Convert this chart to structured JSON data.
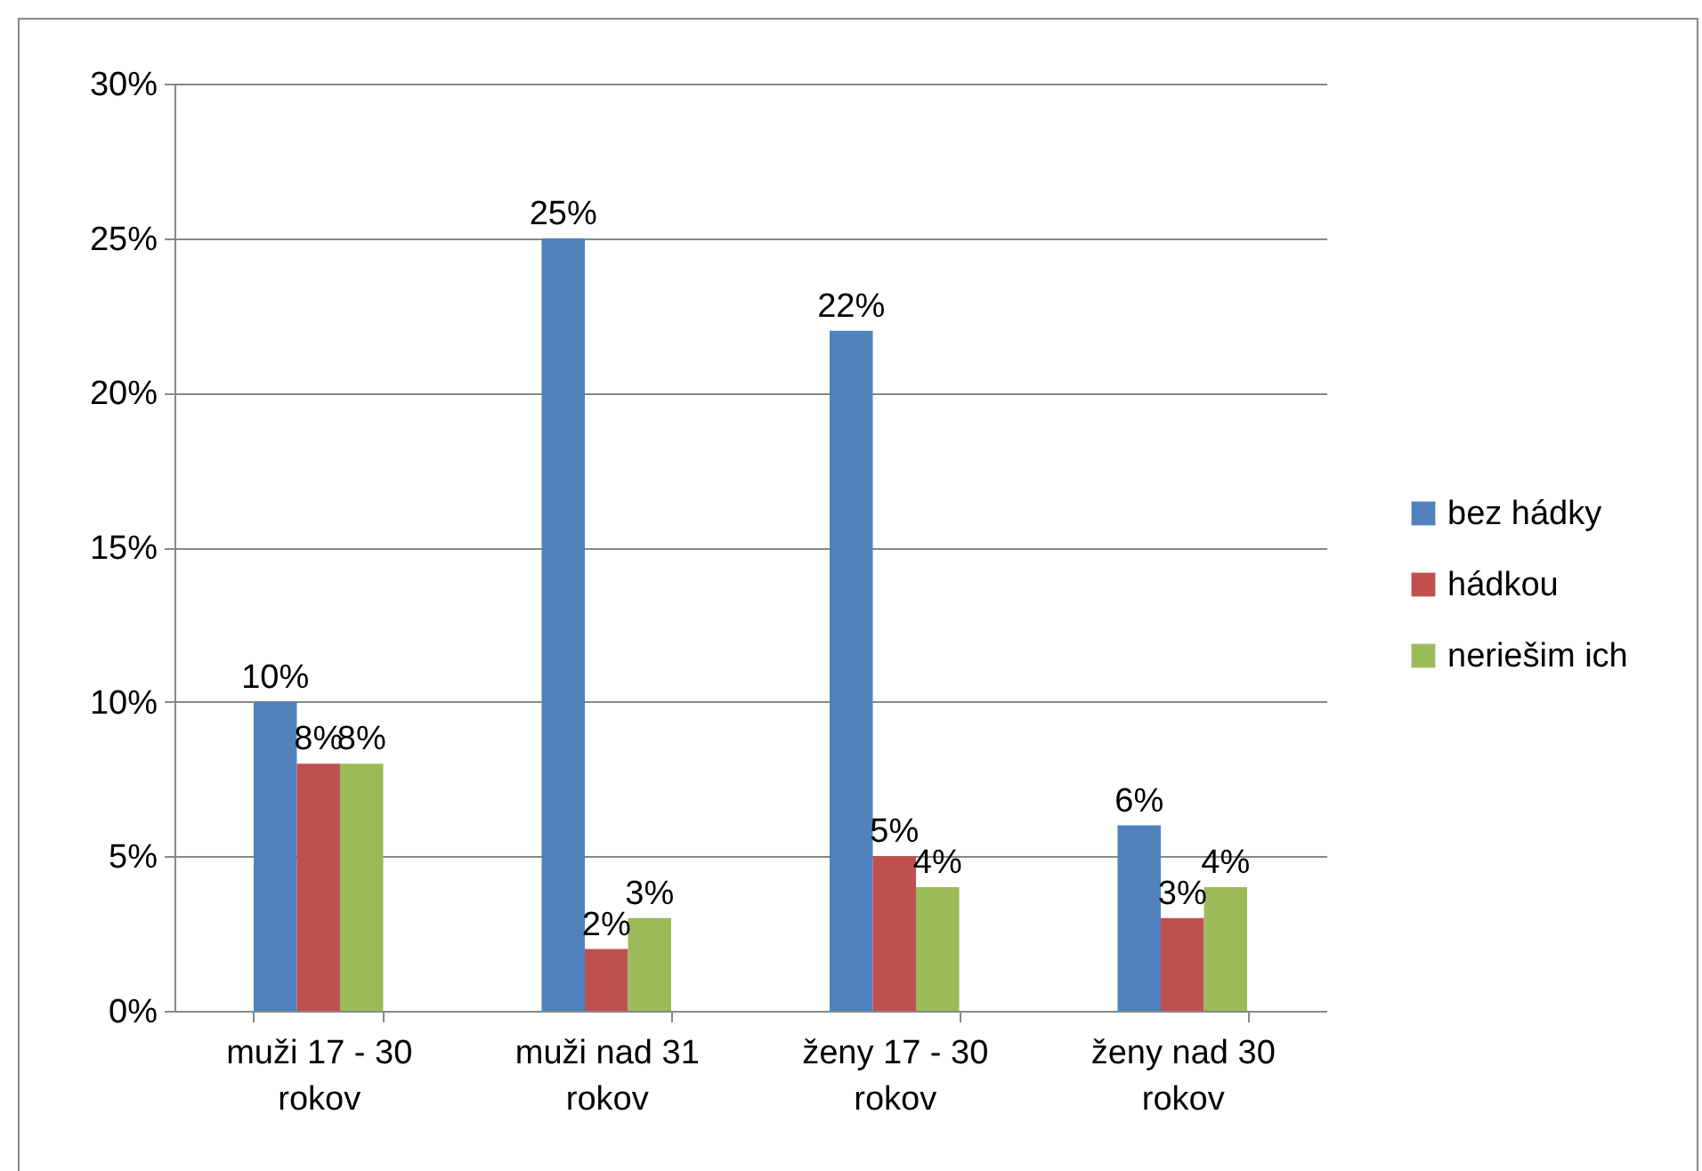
{
  "chart_data": {
    "type": "bar",
    "categories": [
      "muži 17 - 30 rokov",
      "muži nad 31 rokov",
      "ženy 17 - 30 rokov",
      "ženy nad 30 rokov"
    ],
    "series": [
      {
        "name": "bez hádky",
        "color": "#4f81bd",
        "values": [
          10,
          25,
          22,
          6
        ],
        "value_labels": [
          "10%",
          "25%",
          "22%",
          "6%"
        ]
      },
      {
        "name": "hádkou",
        "color": "#c0504d",
        "values": [
          8,
          2,
          5,
          3
        ],
        "value_labels": [
          "8%",
          "2%",
          "5%",
          "3%"
        ]
      },
      {
        "name": "neriešim ich",
        "color": "#9bbb59",
        "values": [
          8,
          3,
          4,
          4
        ],
        "value_labels": [
          "8%",
          "3%",
          "4%",
          "4%"
        ]
      }
    ],
    "ylim": [
      0,
      30
    ],
    "yticks": [
      {
        "value": 0,
        "label": "0%"
      },
      {
        "value": 5,
        "label": "5%"
      },
      {
        "value": 10,
        "label": "10%"
      },
      {
        "value": 15,
        "label": "15%"
      },
      {
        "value": 20,
        "label": "20%"
      },
      {
        "value": 25,
        "label": "25%"
      },
      {
        "value": 30,
        "label": "30%"
      }
    ],
    "grid": "y",
    "legend": "right"
  }
}
